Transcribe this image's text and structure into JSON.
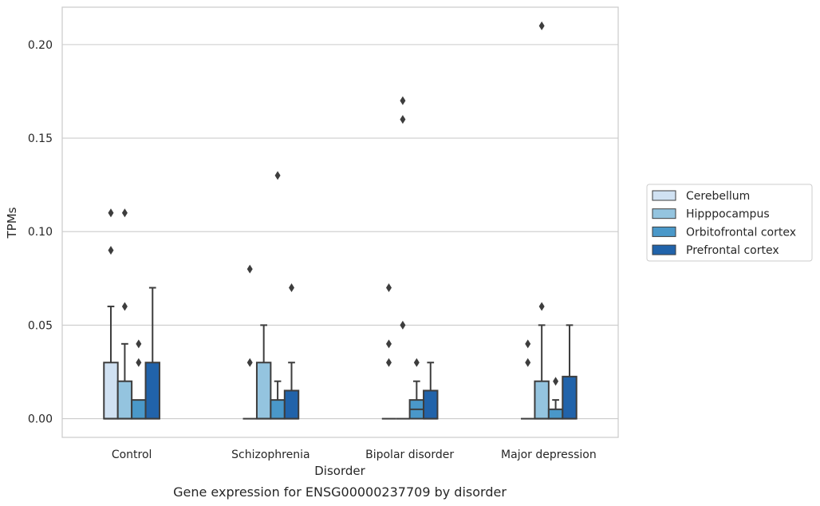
{
  "chart_data": {
    "type": "box",
    "caption": "Gene expression for ENSG00000237709 by disorder",
    "xlabel": "Disorder",
    "ylabel": "TPMs",
    "ylim": [
      -0.01,
      0.22
    ],
    "yticks": [
      0.0,
      0.05,
      0.1,
      0.15,
      0.2
    ],
    "ytick_labels": [
      "0.00",
      "0.05",
      "0.10",
      "0.15",
      "0.20"
    ],
    "grid": true,
    "legend_position": "right, outside",
    "categories": [
      "Control",
      "Schizophrenia",
      "Bipolar disorder",
      "Major depression"
    ],
    "series": [
      {
        "name": "Cerebellum",
        "color": "#d0e1f2",
        "boxes": [
          {
            "q1": 0.0,
            "median": 0.0,
            "q3": 0.03,
            "whisker_low": 0.0,
            "whisker_high": 0.06,
            "outliers": [
              0.09,
              0.11
            ]
          },
          {
            "q1": 0.0,
            "median": 0.0,
            "q3": 0.0,
            "whisker_low": 0.0,
            "whisker_high": 0.0,
            "outliers": [
              0.03,
              0.08
            ]
          },
          {
            "q1": 0.0,
            "median": 0.0,
            "q3": 0.0,
            "whisker_low": 0.0,
            "whisker_high": 0.0,
            "outliers": [
              0.03,
              0.04,
              0.07
            ]
          },
          {
            "q1": 0.0,
            "median": 0.0,
            "q3": 0.0,
            "whisker_low": 0.0,
            "whisker_high": 0.0,
            "outliers": [
              0.03,
              0.04
            ]
          }
        ]
      },
      {
        "name": "Hipppocampus",
        "color": "#94c4df",
        "boxes": [
          {
            "q1": 0.0,
            "median": 0.0,
            "q3": 0.02,
            "whisker_low": 0.0,
            "whisker_high": 0.04,
            "outliers": [
              0.06,
              0.11
            ]
          },
          {
            "q1": 0.0,
            "median": 0.0,
            "q3": 0.03,
            "whisker_low": 0.0,
            "whisker_high": 0.05,
            "outliers": []
          },
          {
            "q1": 0.0,
            "median": 0.0,
            "q3": 0.0,
            "whisker_low": 0.0,
            "whisker_high": 0.0,
            "outliers": [
              0.05,
              0.16,
              0.17
            ]
          },
          {
            "q1": 0.0,
            "median": 0.0,
            "q3": 0.02,
            "whisker_low": 0.0,
            "whisker_high": 0.05,
            "outliers": [
              0.06,
              0.21
            ]
          }
        ]
      },
      {
        "name": "Orbitofrontal cortex",
        "color": "#4a98c9",
        "boxes": [
          {
            "q1": 0.0,
            "median": 0.0,
            "q3": 0.01,
            "whisker_low": 0.0,
            "whisker_high": 0.01,
            "outliers": [
              0.03,
              0.04
            ]
          },
          {
            "q1": 0.0,
            "median": 0.0,
            "q3": 0.01,
            "whisker_low": 0.0,
            "whisker_high": 0.02,
            "outliers": [
              0.13
            ]
          },
          {
            "q1": 0.0,
            "median": 0.005,
            "q3": 0.01,
            "whisker_low": 0.0,
            "whisker_high": 0.02,
            "outliers": [
              0.03
            ]
          },
          {
            "q1": 0.0,
            "median": 0.0,
            "q3": 0.005,
            "whisker_low": 0.0,
            "whisker_high": 0.01,
            "outliers": [
              0.02
            ]
          }
        ]
      },
      {
        "name": "Prefrontal cortex",
        "color": "#2163aa",
        "boxes": [
          {
            "q1": 0.0,
            "median": 0.0,
            "q3": 0.03,
            "whisker_low": 0.0,
            "whisker_high": 0.07,
            "outliers": []
          },
          {
            "q1": 0.0,
            "median": 0.0,
            "q3": 0.015,
            "whisker_low": 0.0,
            "whisker_high": 0.03,
            "outliers": [
              0.07
            ]
          },
          {
            "q1": 0.0,
            "median": 0.0,
            "q3": 0.015,
            "whisker_low": 0.0,
            "whisker_high": 0.03,
            "outliers": []
          },
          {
            "q1": 0.0,
            "median": 0.0,
            "q3": 0.0225,
            "whisker_low": 0.0,
            "whisker_high": 0.05,
            "outliers": []
          }
        ]
      }
    ]
  }
}
